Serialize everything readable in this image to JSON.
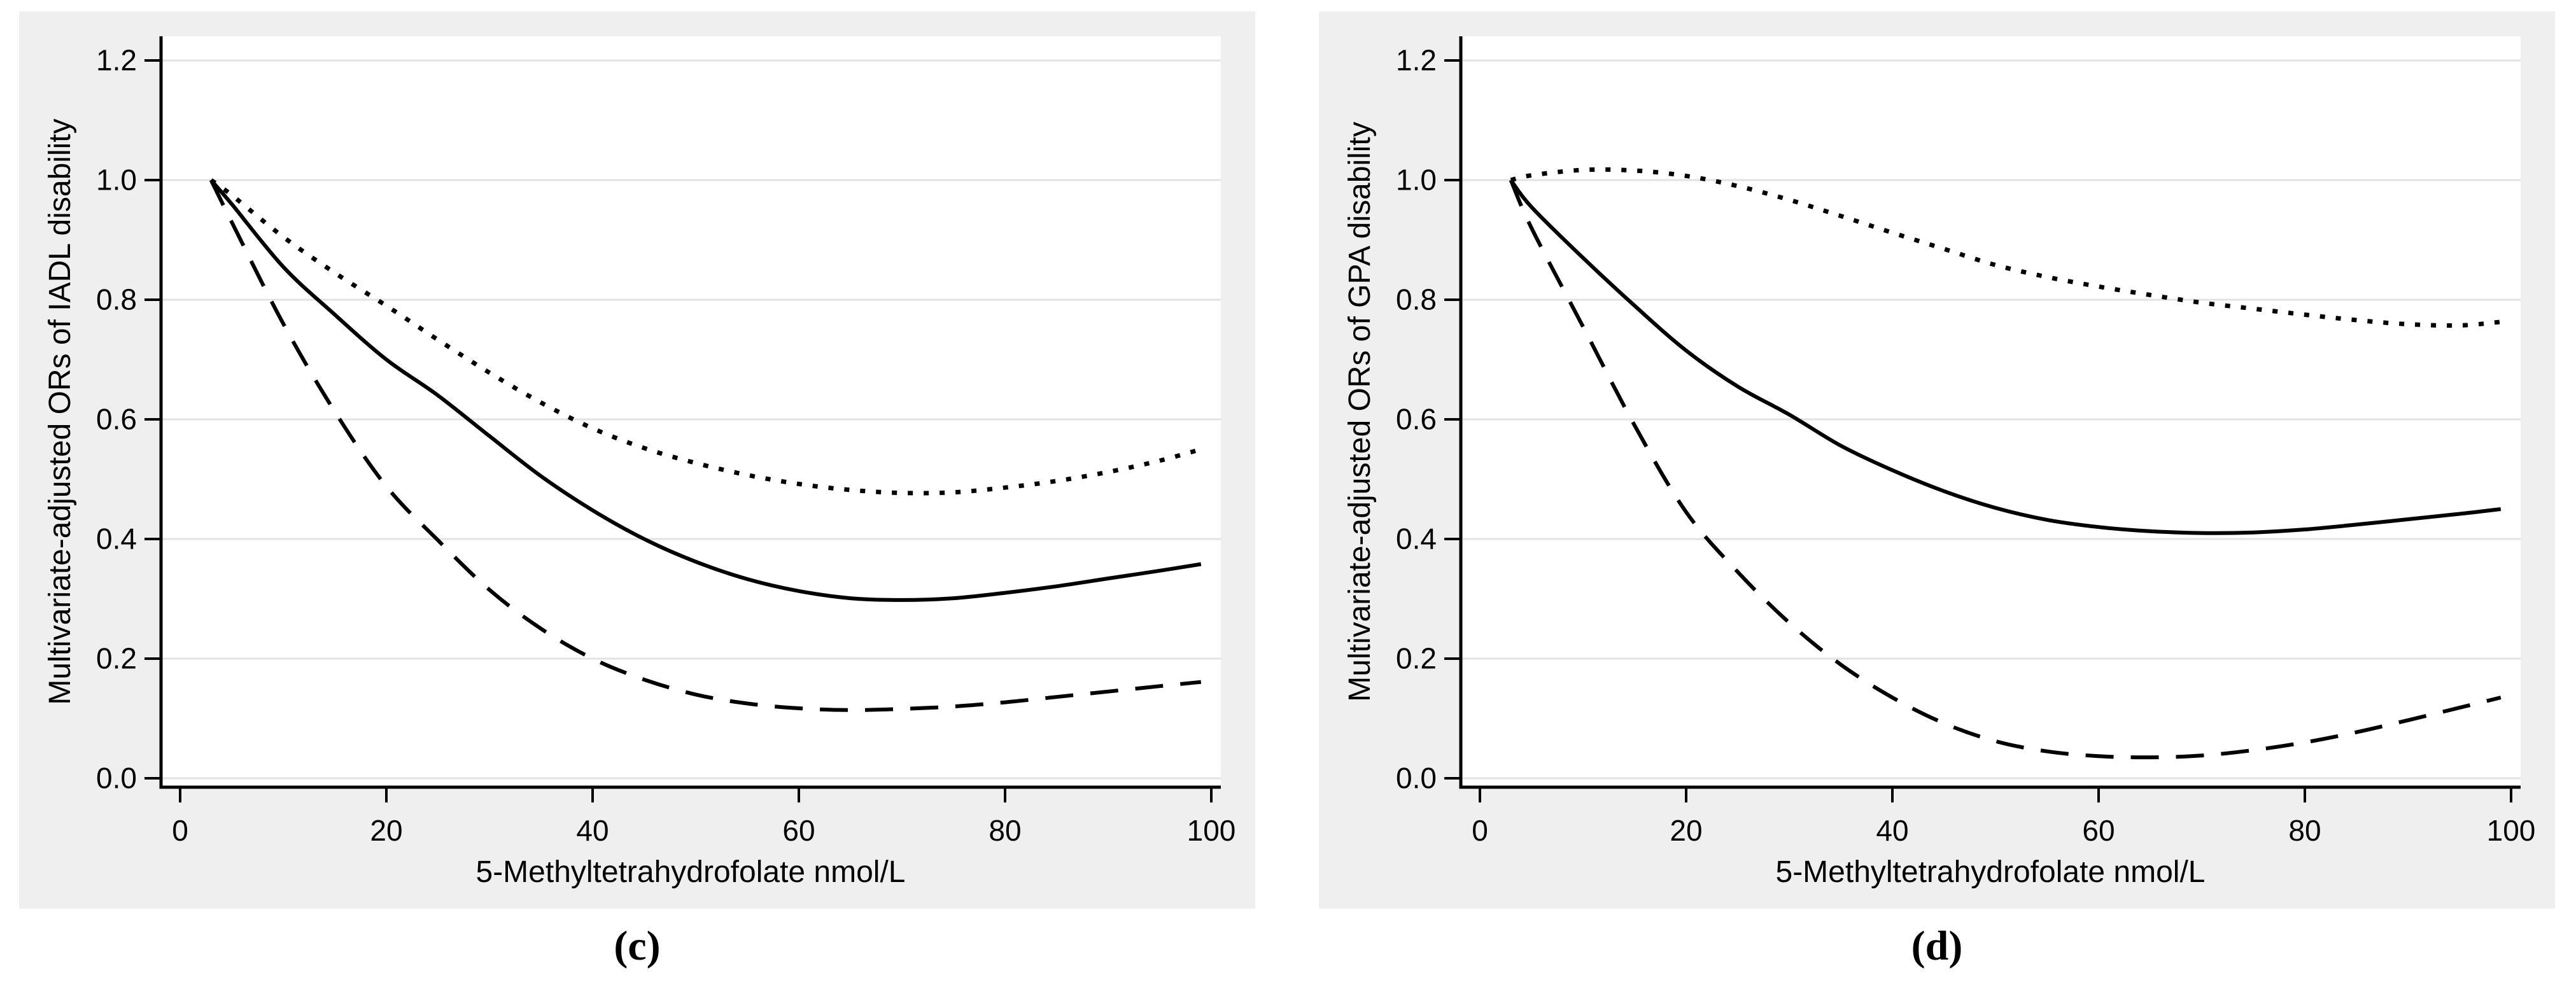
{
  "figure": {
    "background_color": "#ffffff",
    "card_color": "#efefef",
    "gridline_color": "#e2e2e2",
    "line_color": "#000000",
    "panels": [
      {
        "label": "(c)",
        "y_axis_title": "Multivariate-adjusted ORs of IADL disability",
        "x_axis_title": "5-Methyltetrahydrofolate nmol/L"
      },
      {
        "label": "(d)",
        "y_axis_title": "Multivariate-adjusted ORs of GPA disability",
        "x_axis_title": "5-Methyltetrahydrofolate nmol/L"
      }
    ]
  },
  "chart_data": [
    {
      "type": "line",
      "panel_label": "(c)",
      "title": "",
      "xlabel": "5-Methyltetrahydrofolate nmol/L",
      "ylabel": "Multivariate-adjusted ORs of IADL disability",
      "xlim": [
        -2,
        101
      ],
      "ylim": [
        -0.015,
        1.24
      ],
      "xticks": [
        "0",
        "20",
        "40",
        "60",
        "80",
        "100"
      ],
      "yticks": [
        "0.0",
        "0.2",
        "0.4",
        "0.6",
        "0.8",
        "1.0",
        "1.2"
      ],
      "grid": "horizontal",
      "legend": "none",
      "x": [
        3,
        5,
        10,
        15,
        20,
        25,
        30,
        35,
        40,
        45,
        50,
        55,
        60,
        65,
        70,
        75,
        80,
        85,
        90,
        95,
        99
      ],
      "series": [
        {
          "name": "solid (point estimate)",
          "style": "solid",
          "values": [
            1.0,
            0.96,
            0.855,
            0.775,
            0.7,
            0.64,
            0.572,
            0.505,
            0.448,
            0.4,
            0.362,
            0.333,
            0.313,
            0.301,
            0.298,
            0.301,
            0.31,
            0.321,
            0.334,
            0.347,
            0.358
          ]
        },
        {
          "name": "dotted (upper band)",
          "style": "dotted",
          "values": [
            1.0,
            0.975,
            0.905,
            0.845,
            0.79,
            0.733,
            0.678,
            0.628,
            0.585,
            0.552,
            0.527,
            0.507,
            0.492,
            0.482,
            0.477,
            0.478,
            0.486,
            0.497,
            0.512,
            0.531,
            0.55
          ]
        },
        {
          "name": "dashed (lower band)",
          "style": "dashed",
          "values": [
            1.0,
            0.93,
            0.76,
            0.613,
            0.488,
            0.398,
            0.315,
            0.25,
            0.2,
            0.165,
            0.14,
            0.125,
            0.117,
            0.114,
            0.116,
            0.12,
            0.127,
            0.136,
            0.145,
            0.154,
            0.161
          ]
        }
      ]
    },
    {
      "type": "line",
      "panel_label": "(d)",
      "title": "",
      "xlabel": "5-Methyltetrahydrofolate nmol/L",
      "ylabel": "Multivariate-adjusted ORs of GPA disability",
      "xlim": [
        -2,
        101
      ],
      "ylim": [
        -0.015,
        1.24
      ],
      "xticks": [
        "0",
        "20",
        "40",
        "60",
        "80",
        "100"
      ],
      "yticks": [
        "0.0",
        "0.2",
        "0.4",
        "0.6",
        "0.8",
        "1.0",
        "1.2"
      ],
      "grid": "horizontal",
      "legend": "none",
      "x": [
        3,
        5,
        10,
        15,
        20,
        25,
        30,
        35,
        40,
        45,
        50,
        55,
        60,
        65,
        70,
        75,
        80,
        85,
        90,
        95,
        99
      ],
      "series": [
        {
          "name": "solid (point estimate)",
          "style": "solid",
          "values": [
            1.0,
            0.955,
            0.87,
            0.79,
            0.715,
            0.655,
            0.608,
            0.556,
            0.515,
            0.48,
            0.452,
            0.432,
            0.42,
            0.413,
            0.41,
            0.411,
            0.416,
            0.424,
            0.433,
            0.442,
            0.45
          ]
        },
        {
          "name": "dotted (upper band)",
          "style": "dotted",
          "values": [
            1.0,
            1.008,
            1.017,
            1.016,
            1.007,
            0.99,
            0.967,
            0.94,
            0.912,
            0.885,
            0.858,
            0.838,
            0.822,
            0.808,
            0.795,
            0.785,
            0.775,
            0.766,
            0.759,
            0.757,
            0.763
          ]
        },
        {
          "name": "dashed (lower band)",
          "style": "dashed",
          "values": [
            1.0,
            0.92,
            0.755,
            0.59,
            0.445,
            0.345,
            0.26,
            0.19,
            0.135,
            0.092,
            0.062,
            0.045,
            0.037,
            0.035,
            0.038,
            0.047,
            0.06,
            0.077,
            0.097,
            0.118,
            0.135
          ]
        }
      ]
    }
  ]
}
